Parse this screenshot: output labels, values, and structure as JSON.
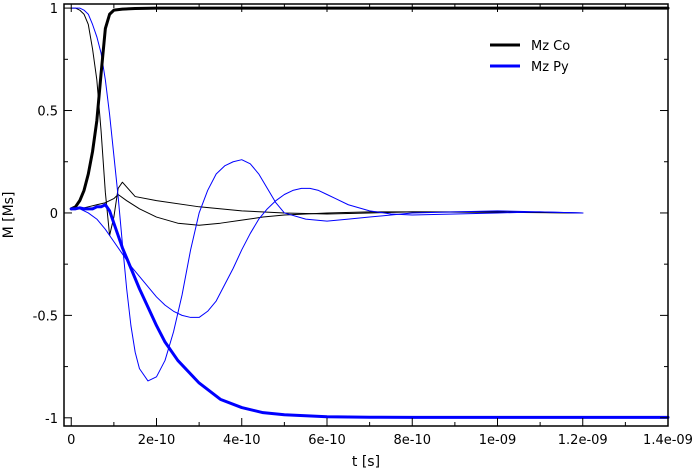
{
  "chart_data": {
    "type": "line",
    "xlabel": "t [s]",
    "ylabel": "M [Ms]",
    "xlim": [
      -1.7e-11,
      1.4e-09
    ],
    "ylim": [
      -1.04,
      1.02
    ],
    "xticks": [
      0,
      2e-10,
      4e-10,
      6e-10,
      8e-10,
      1e-09,
      1.2e-09,
      1.4e-09
    ],
    "xtick_labels": [
      "0",
      "2e-10",
      "4e-10",
      "6e-10",
      "8e-10",
      "1e-09",
      "1.2e-09",
      "1.4e-09"
    ],
    "yticks": [
      1,
      0.5,
      0,
      -0.5,
      -1
    ],
    "ytick_labels": [
      "1",
      "0.5",
      "0",
      "-0.5",
      "-1"
    ],
    "grid": false,
    "legend": {
      "position": "top-right",
      "entries": [
        "Mz Co",
        "Mz Py"
      ]
    },
    "series": [
      {
        "name": "Mz Co",
        "color": "#000000",
        "width": 3,
        "x": [
          0,
          1e-11,
          2e-11,
          3e-11,
          4e-11,
          5e-11,
          6e-11,
          7e-11,
          8e-11,
          9e-11,
          1e-10,
          1.2e-10,
          1.5e-10,
          2e-10,
          3e-10,
          5e-10,
          8e-10,
          1e-09,
          1.4e-09
        ],
        "y": [
          0.02,
          0.03,
          0.06,
          0.11,
          0.19,
          0.3,
          0.45,
          0.68,
          0.9,
          0.97,
          0.99,
          0.995,
          0.998,
          1.0,
          1.0,
          1.0,
          1.0,
          1.0,
          1.0
        ]
      },
      {
        "name": "Mz Py",
        "color": "#0000ff",
        "width": 3,
        "x": [
          0,
          1e-11,
          2e-11,
          3e-11,
          4e-11,
          5e-11,
          6e-11,
          7e-11,
          8e-11,
          9e-11,
          1e-10,
          1.2e-10,
          1.4e-10,
          1.6e-10,
          1.8e-10,
          2e-10,
          2.2e-10,
          2.5e-10,
          3e-10,
          3.5e-10,
          4e-10,
          4.5e-10,
          5e-10,
          5.5e-10,
          6e-10,
          7e-10,
          8e-10,
          1e-09,
          1.2e-09,
          1.4e-09
        ],
        "y": [
          0.02,
          0.02,
          0.025,
          0.02,
          0.02,
          0.02,
          0.03,
          0.03,
          0.04,
          0.01,
          -0.05,
          -0.17,
          -0.27,
          -0.37,
          -0.46,
          -0.55,
          -0.63,
          -0.72,
          -0.83,
          -0.91,
          -0.95,
          -0.975,
          -0.985,
          -0.99,
          -0.995,
          -0.997,
          -0.998,
          -0.998,
          -0.998,
          -0.998
        ]
      },
      {
        "name": "",
        "color": "#000000",
        "width": 1,
        "x": [
          0,
          1e-11,
          2e-11,
          3e-11,
          4e-11,
          5e-11,
          6e-11,
          7e-11,
          8e-11,
          9e-11,
          1e-10,
          1.1e-10,
          1.2e-10,
          1.5e-10,
          2e-10,
          3e-10,
          4e-10,
          5e-10,
          6e-10,
          7e-10,
          8e-10,
          1e-09,
          1.2e-09
        ],
        "y": [
          1.0,
          1.0,
          0.99,
          0.97,
          0.92,
          0.8,
          0.65,
          0.4,
          0.1,
          -0.11,
          -0.02,
          0.12,
          0.15,
          0.08,
          0.06,
          0.03,
          0.01,
          0.0,
          -0.005,
          0.0,
          0.005,
          0.005,
          0.0
        ]
      },
      {
        "name": "",
        "color": "#000000",
        "width": 1,
        "x": [
          0,
          2e-11,
          4e-11,
          6e-11,
          8e-11,
          1e-10,
          1.1e-10,
          1.3e-10,
          1.6e-10,
          2e-10,
          2.5e-10,
          3e-10,
          3.5e-10,
          4e-10,
          4.5e-10,
          5e-10,
          6e-10,
          7e-10,
          8e-10,
          1e-09,
          1.2e-09
        ],
        "y": [
          0.02,
          0.02,
          0.03,
          0.04,
          0.05,
          0.07,
          0.09,
          0.06,
          0.02,
          -0.02,
          -0.05,
          -0.06,
          -0.05,
          -0.035,
          -0.02,
          -0.01,
          0.0,
          0.005,
          0.005,
          0.003,
          0.0
        ]
      },
      {
        "name": "",
        "color": "#0000ff",
        "width": 1,
        "x": [
          0,
          2e-11,
          3e-11,
          4e-11,
          5e-11,
          6e-11,
          7e-11,
          8e-11,
          9e-11,
          1e-10,
          1.1e-10,
          1.2e-10,
          1.3e-10,
          1.4e-10,
          1.5e-10,
          1.6e-10,
          1.8e-10,
          2e-10,
          2.2e-10,
          2.4e-10,
          2.6e-10,
          2.8e-10,
          3e-10,
          3.2e-10,
          3.4e-10,
          3.6e-10,
          3.8e-10,
          4e-10,
          4.2e-10,
          4.4e-10,
          4.6e-10,
          4.8e-10,
          5e-10,
          5.5e-10,
          6e-10,
          6.5e-10,
          7e-10,
          7.5e-10,
          8e-10,
          9e-10,
          1e-09,
          1.1e-09,
          1.2e-09
        ],
        "y": [
          1.0,
          1.0,
          0.99,
          0.97,
          0.92,
          0.86,
          0.78,
          0.65,
          0.48,
          0.28,
          0.08,
          -0.15,
          -0.37,
          -0.55,
          -0.68,
          -0.76,
          -0.82,
          -0.8,
          -0.72,
          -0.58,
          -0.4,
          -0.18,
          0.0,
          0.11,
          0.19,
          0.23,
          0.25,
          0.26,
          0.24,
          0.19,
          0.12,
          0.05,
          0.0,
          -0.03,
          -0.04,
          -0.03,
          -0.02,
          -0.01,
          0.0,
          0.005,
          0.01,
          0.005,
          0.0
        ]
      },
      {
        "name": "",
        "color": "#0000ff",
        "width": 1,
        "x": [
          0,
          2e-11,
          4e-11,
          6e-11,
          8e-11,
          1e-10,
          1.2e-10,
          1.4e-10,
          1.6e-10,
          1.8e-10,
          2e-10,
          2.2e-10,
          2.4e-10,
          2.6e-10,
          2.8e-10,
          3e-10,
          3.2e-10,
          3.4e-10,
          3.6e-10,
          3.8e-10,
          4e-10,
          4.2e-10,
          4.4e-10,
          4.6e-10,
          4.8e-10,
          5e-10,
          5.2e-10,
          5.4e-10,
          5.6e-10,
          5.8e-10,
          6e-10,
          6.2e-10,
          6.5e-10,
          7e-10,
          7.5e-10,
          8e-10,
          9e-10,
          1e-09,
          1.1e-09,
          1.2e-09
        ],
        "y": [
          0.02,
          0.02,
          0.0,
          -0.03,
          -0.08,
          -0.14,
          -0.2,
          -0.26,
          -0.31,
          -0.36,
          -0.41,
          -0.45,
          -0.48,
          -0.5,
          -0.51,
          -0.51,
          -0.48,
          -0.43,
          -0.35,
          -0.27,
          -0.18,
          -0.1,
          -0.03,
          0.02,
          0.06,
          0.09,
          0.11,
          0.12,
          0.12,
          0.11,
          0.09,
          0.07,
          0.04,
          0.01,
          -0.005,
          -0.01,
          -0.005,
          0.0,
          0.005,
          0.0
        ]
      }
    ]
  }
}
